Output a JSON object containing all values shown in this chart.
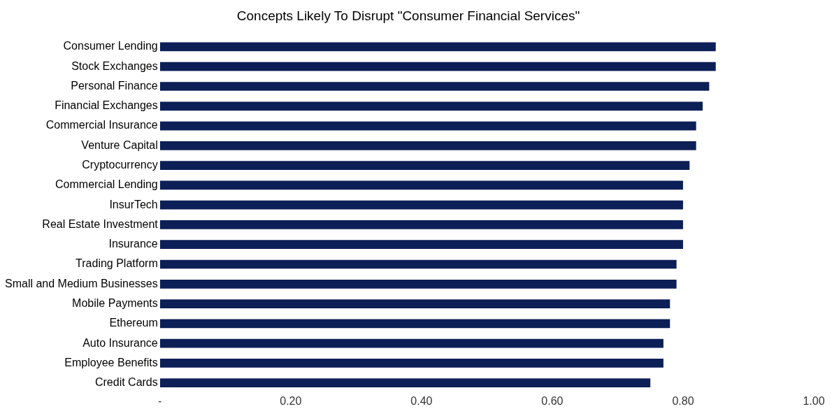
{
  "chart_data": {
    "type": "bar",
    "orientation": "horizontal",
    "title": "Concepts Likely To Disrupt \"Consumer Financial Services\"",
    "categories": [
      "Consumer Lending",
      "Stock Exchanges",
      "Personal Finance",
      "Financial Exchanges",
      "Commercial Insurance",
      "Venture Capital",
      "Cryptocurrency",
      "Commercial Lending",
      "InsurTech",
      "Real Estate Investment",
      "Insurance",
      "Trading Platform",
      "Small and Medium Businesses",
      "Mobile Payments",
      "Ethereum",
      "Auto Insurance",
      "Employee Benefits",
      "Credit Cards"
    ],
    "values": [
      0.85,
      0.85,
      0.84,
      0.83,
      0.82,
      0.82,
      0.81,
      0.8,
      0.8,
      0.8,
      0.8,
      0.79,
      0.79,
      0.78,
      0.78,
      0.77,
      0.77,
      0.75
    ],
    "color": "#0c1f56",
    "xlim": [
      0,
      1
    ],
    "xticks": [
      {
        "value": 0,
        "label": "-"
      },
      {
        "value": 0.2,
        "label": "0.20"
      },
      {
        "value": 0.4,
        "label": "0.40"
      },
      {
        "value": 0.6,
        "label": "0.60"
      },
      {
        "value": 0.8,
        "label": "0.80"
      },
      {
        "value": 1,
        "label": "1.00"
      }
    ],
    "grid": false,
    "legend": false
  }
}
